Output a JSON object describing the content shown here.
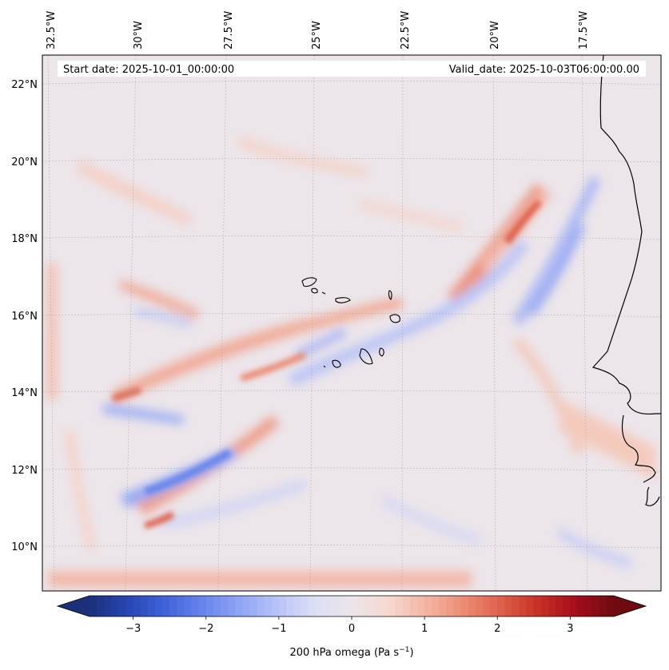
{
  "header": {
    "start_date": "Start date: 2025-10-01_00:00:00",
    "valid_date": "Valid_date: 2025-10-03T06:00:00.00"
  },
  "map": {
    "longitude_labels": [
      "32.5°W",
      "30°W",
      "27.5°W",
      "25°W",
      "22.5°W",
      "20°W",
      "17.5°W"
    ],
    "latitude_labels": [
      "22°N",
      "20°N",
      "18°N",
      "16°N",
      "14°N",
      "12°N",
      "10°N"
    ],
    "field": "200 hPa omega",
    "gridlines": true
  },
  "colorbar": {
    "label": "200 hPa omega (Pa s",
    "label_sup": "−1",
    "label_close": ")",
    "ticks": [
      "−3",
      "−2",
      "−1",
      "0",
      "1",
      "2",
      "3"
    ],
    "tick_values": [
      -3,
      -2,
      -1,
      0,
      1,
      2,
      3
    ],
    "range": [
      -3.6,
      3.6
    ],
    "colormap": "coolwarm",
    "extend": "both",
    "colors": [
      "#1b2f7a",
      "#2746b3",
      "#3f62d8",
      "#6684eb",
      "#8fa4f4",
      "#b7c3f7",
      "#dcdff5",
      "#ece5ea",
      "#f6d8d0",
      "#f3b4a2",
      "#ec8c73",
      "#de5e4a",
      "#c63025",
      "#a40d1a",
      "#6e0b10"
    ]
  },
  "chart_data": {
    "type": "heatmap",
    "title": "",
    "xlabel": "",
    "ylabel": "",
    "colorbar_label": "200 hPa omega (Pa s−1)",
    "x_ticks": [
      "32.5°W",
      "30°W",
      "27.5°W",
      "25°W",
      "22.5°W",
      "20°W",
      "17.5°W"
    ],
    "y_ticks": [
      "22°N",
      "20°N",
      "18°N",
      "16°N",
      "14°N",
      "12°N",
      "10°N"
    ],
    "value_range": [
      -3.6,
      3.6
    ],
    "colorbar_ticks": [
      -3,
      -2,
      -1,
      0,
      1,
      2,
      3
    ]
  }
}
